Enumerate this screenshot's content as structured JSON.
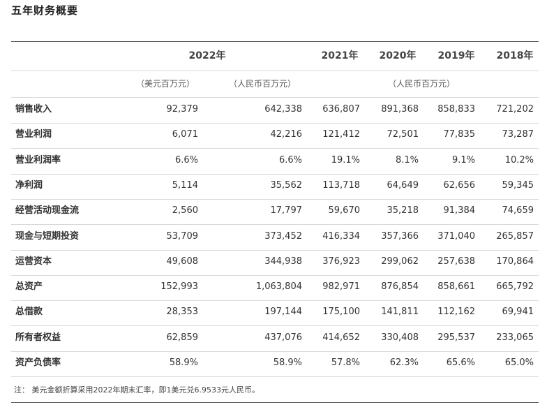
{
  "title": "五年财务概要",
  "header": {
    "years": [
      "2022年",
      "2021年",
      "2020年",
      "2019年",
      "2018年"
    ],
    "unit_usd": "（美元百万元）",
    "unit_rmb_2022": "（人民币百万元）",
    "unit_rmb_prior": "（人民币百万元）"
  },
  "rows": [
    {
      "label": "销售收入",
      "values": [
        "92,379",
        "642,338",
        "636,807",
        "891,368",
        "858,833",
        "721,202"
      ]
    },
    {
      "label": "营业利润",
      "values": [
        "6,071",
        "42,216",
        "121,412",
        "72,501",
        "77,835",
        "73,287"
      ]
    },
    {
      "label": "营业利润率",
      "values": [
        "6.6%",
        "6.6%",
        "19.1%",
        "8.1%",
        "9.1%",
        "10.2%"
      ]
    },
    {
      "label": "净利润",
      "values": [
        "5,114",
        "35,562",
        "113,718",
        "64,649",
        "62,656",
        "59,345"
      ]
    },
    {
      "label": "经营活动现金流",
      "values": [
        "2,560",
        "17,797",
        "59,670",
        "35,218",
        "91,384",
        "74,659"
      ]
    },
    {
      "label": "现金与短期投资",
      "values": [
        "53,709",
        "373,452",
        "416,334",
        "357,366",
        "371,040",
        "265,857"
      ]
    },
    {
      "label": "运营资本",
      "values": [
        "49,608",
        "344,938",
        "376,923",
        "299,062",
        "257,638",
        "170,864"
      ]
    },
    {
      "label": "总资产",
      "values": [
        "152,993",
        "1,063,804",
        "982,971",
        "876,854",
        "858,661",
        "665,792"
      ]
    },
    {
      "label": "总借款",
      "values": [
        "28,353",
        "197,144",
        "175,100",
        "141,811",
        "112,162",
        "69,941"
      ]
    },
    {
      "label": "所有者权益",
      "values": [
        "62,859",
        "437,076",
        "414,652",
        "330,408",
        "295,537",
        "233,065"
      ]
    },
    {
      "label": "资产负债率",
      "values": [
        "58.9%",
        "58.9%",
        "57.8%",
        "62.3%",
        "65.6%",
        "65.0%"
      ]
    }
  ],
  "note": "注： 美元金额折算采用2022年期末汇率，即1美元兑6.9533元人民币。"
}
